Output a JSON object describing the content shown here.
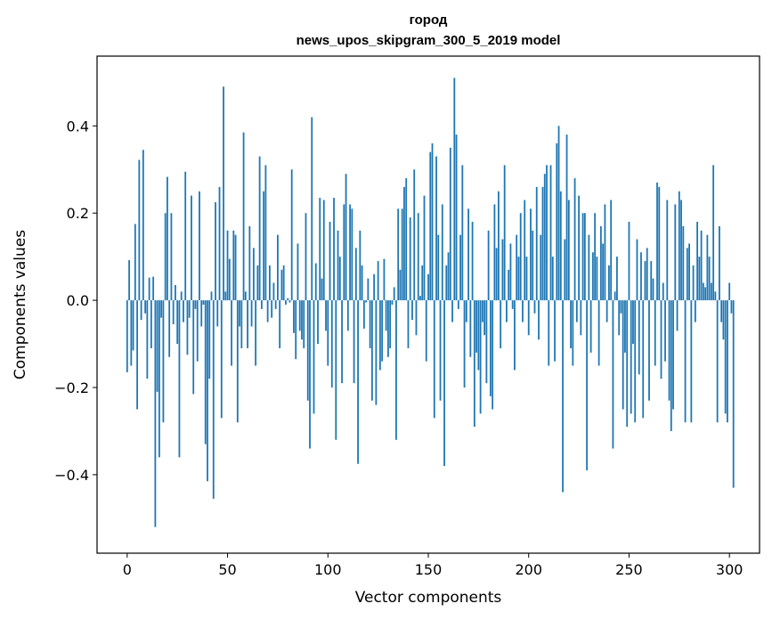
{
  "chart_data": {
    "type": "bar",
    "title": "город",
    "subtitle": "news_upos_skipgram_300_5_2019 model",
    "xlabel": "Vector components",
    "ylabel": "Components values",
    "xlim": [
      -15,
      315
    ],
    "ylim": [
      -0.58,
      0.56
    ],
    "xticks": [
      0,
      50,
      100,
      150,
      200,
      250,
      300
    ],
    "yticks": [
      -0.4,
      -0.2,
      0.0,
      0.2,
      0.4
    ],
    "xtick_labels": [
      "0",
      "50",
      "100",
      "150",
      "200",
      "250",
      "300"
    ],
    "ytick_labels": [
      "−0.4",
      "−0.2",
      "0.0",
      "0.2",
      "0.4"
    ],
    "bar_color": "#1f77b4",
    "grid": false,
    "series": [
      {
        "name": "город",
        "values": [
          -0.165,
          0.092,
          -0.15,
          -0.115,
          0.175,
          -0.25,
          0.322,
          -0.045,
          0.345,
          -0.03,
          -0.18,
          0.052,
          -0.11,
          0.054,
          -0.52,
          -0.21,
          -0.36,
          -0.04,
          -0.28,
          0.2,
          0.283,
          -0.13,
          0.2,
          -0.055,
          0.035,
          -0.1,
          -0.36,
          0.02,
          -0.05,
          0.295,
          -0.125,
          -0.04,
          0.24,
          -0.215,
          -0.02,
          -0.14,
          0.25,
          -0.06,
          -0.01,
          -0.33,
          -0.415,
          -0.18,
          0.02,
          -0.455,
          0.225,
          -0.06,
          0.26,
          -0.27,
          0.49,
          0.02,
          0.16,
          0.095,
          -0.15,
          0.16,
          0.15,
          -0.28,
          -0.06,
          -0.11,
          0.385,
          0.02,
          -0.11,
          0.17,
          -0.06,
          0.12,
          -0.15,
          0.08,
          0.33,
          -0.02,
          0.25,
          0.31,
          -0.05,
          0.08,
          -0.04,
          0.04,
          -0.02,
          0.15,
          -0.11,
          0.07,
          0.08,
          -0.01,
          0.005,
          -0.005,
          0.3,
          -0.075,
          -0.135,
          0.13,
          -0.07,
          -0.09,
          -0.11,
          0.2,
          -0.23,
          -0.34,
          0.42,
          -0.26,
          0.085,
          -0.1,
          0.235,
          0.05,
          0.23,
          -0.07,
          -0.15,
          0.18,
          -0.2,
          0.235,
          -0.32,
          0.16,
          0.1,
          -0.19,
          0.22,
          0.29,
          -0.07,
          0.22,
          0.21,
          -0.19,
          0.12,
          -0.375,
          0.16,
          0.08,
          -0.065,
          -0.005,
          0.05,
          -0.11,
          -0.23,
          0.06,
          -0.24,
          0.09,
          -0.16,
          -0.14,
          0.095,
          -0.07,
          -0.13,
          -0.11,
          -0.01,
          0.03,
          -0.32,
          0.21,
          0.07,
          0.21,
          0.26,
          0.28,
          -0.11,
          0.19,
          -0.045,
          0.3,
          -0.08,
          0.2,
          0.01,
          0.08,
          0.24,
          -0.14,
          0.06,
          0.34,
          0.36,
          -0.27,
          0.33,
          0.15,
          -0.23,
          0.22,
          -0.38,
          0.08,
          0.11,
          0.35,
          -0.05,
          0.51,
          0.38,
          -0.02,
          0.15,
          0.31,
          -0.2,
          -0.05,
          0.21,
          -0.13,
          0.18,
          -0.29,
          -0.12,
          -0.16,
          -0.26,
          -0.05,
          -0.08,
          -0.19,
          0.16,
          -0.22,
          -0.25,
          0.22,
          0.12,
          0.25,
          -0.11,
          0.14,
          0.31,
          -0.05,
          0.07,
          0.13,
          -0.02,
          -0.16,
          0.15,
          0.1,
          0.2,
          -0.05,
          0.23,
          0.1,
          -0.08,
          0.21,
          0.16,
          -0.03,
          0.26,
          -0.09,
          0.15,
          0.26,
          0.29,
          0.31,
          -0.15,
          0.31,
          0.1,
          -0.14,
          0.36,
          0.4,
          0.25,
          -0.44,
          0.14,
          0.38,
          0.23,
          -0.11,
          -0.15,
          0.28,
          -0.05,
          0.24,
          -0.08,
          0.2,
          0.2,
          -0.39,
          0.15,
          -0.12,
          0.11,
          0.2,
          0.1,
          -0.15,
          0.17,
          0.13,
          0.22,
          -0.05,
          0.08,
          0.23,
          -0.34,
          0.02,
          0.1,
          -0.08,
          -0.03,
          -0.25,
          -0.12,
          -0.29,
          0.18,
          -0.26,
          -0.1,
          -0.28,
          0.14,
          -0.17,
          0.11,
          -0.27,
          0.09,
          0.12,
          -0.23,
          0.09,
          0.05,
          -0.15,
          0.27,
          0.26,
          -0.18,
          0.04,
          -0.14,
          0.23,
          -0.23,
          -0.3,
          -0.25,
          0.22,
          -0.07,
          0.25,
          0.23,
          0.17,
          -0.28,
          0.12,
          0.13,
          -0.28,
          0.08,
          -0.05,
          0.18,
          0.1,
          0.16,
          0.04,
          0.03,
          0.15,
          0.1,
          0.04,
          0.31,
          0.02,
          -0.28,
          0.17,
          -0.05,
          -0.09,
          -0.26,
          -0.28,
          0.04,
          -0.03,
          -0.43
        ]
      }
    ]
  }
}
